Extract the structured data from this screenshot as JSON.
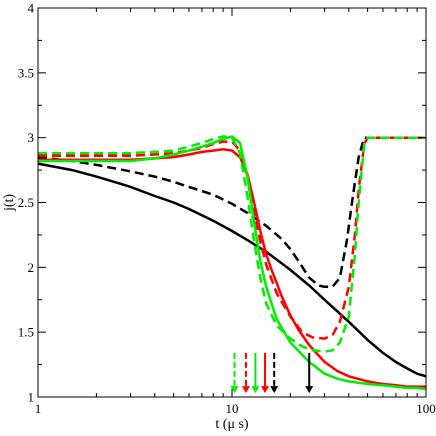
{
  "chart_data": {
    "type": "line",
    "title": "",
    "xlabel": "t (μ s)",
    "ylabel": "j(t)",
    "xscale": "log",
    "xlim": [
      1,
      100
    ],
    "ylim": [
      1,
      4
    ],
    "x_ticks": [
      1,
      10,
      100
    ],
    "x_tick_labels": [
      "1",
      "10",
      "100"
    ],
    "y_ticks": [
      1,
      1.5,
      2,
      2.5,
      3,
      3.5,
      4
    ],
    "y_tick_labels": [
      "1",
      "1.5",
      "2",
      "2.5",
      "3",
      "3.5",
      "4"
    ],
    "grid": false,
    "legend": "none",
    "series": [
      {
        "color": "#000000",
        "style": "solid",
        "x": [
          1,
          1.5,
          2,
          3,
          4,
          5,
          6,
          8,
          10,
          12,
          15,
          17,
          20,
          25,
          30,
          40,
          50,
          60,
          70,
          80,
          90,
          100
        ],
        "y": [
          2.8,
          2.75,
          2.7,
          2.62,
          2.55,
          2.5,
          2.45,
          2.36,
          2.28,
          2.21,
          2.12,
          2.06,
          1.98,
          1.86,
          1.75,
          1.58,
          1.44,
          1.34,
          1.27,
          1.22,
          1.18,
          1.16
        ]
      },
      {
        "color": "#000000",
        "style": "dashed",
        "x": [
          1,
          1.5,
          2,
          3,
          4,
          5,
          6,
          8,
          10,
          12,
          15,
          18,
          20,
          22,
          25,
          28,
          30,
          33,
          36,
          39,
          42,
          45,
          48,
          50,
          60,
          70,
          80,
          90,
          100
        ],
        "y": [
          2.85,
          2.82,
          2.79,
          2.74,
          2.7,
          2.66,
          2.62,
          2.56,
          2.49,
          2.42,
          2.32,
          2.22,
          2.14,
          2.05,
          1.92,
          1.86,
          1.85,
          1.85,
          1.92,
          2.2,
          2.55,
          2.85,
          3.0,
          3.0,
          3.0,
          3.0,
          3.0,
          3.0,
          3.0
        ]
      },
      {
        "color": "#ff0000",
        "style": "solid",
        "x": [
          1,
          2,
          3,
          4,
          5,
          6,
          7,
          8,
          9,
          10,
          11,
          12,
          13,
          14,
          15,
          16,
          17,
          18,
          20,
          22,
          25,
          30,
          35,
          40,
          50,
          60,
          70,
          80,
          90,
          100
        ],
        "y": [
          2.83,
          2.83,
          2.83,
          2.84,
          2.85,
          2.87,
          2.89,
          2.9,
          2.91,
          2.9,
          2.85,
          2.72,
          2.5,
          2.28,
          2.1,
          1.98,
          1.88,
          1.78,
          1.63,
          1.52,
          1.4,
          1.27,
          1.2,
          1.16,
          1.12,
          1.1,
          1.09,
          1.08,
          1.08,
          1.08
        ]
      },
      {
        "color": "#ff0000",
        "style": "dashed",
        "x": [
          1,
          2,
          3,
          4,
          5,
          6,
          7,
          8,
          9,
          10,
          11,
          12,
          13,
          14,
          15,
          17,
          20,
          23,
          26,
          30,
          33,
          36,
          40,
          43,
          45,
          48,
          50,
          60,
          70,
          80,
          90,
          100
        ],
        "y": [
          2.86,
          2.86,
          2.86,
          2.87,
          2.88,
          2.9,
          2.92,
          2.95,
          2.97,
          2.97,
          2.9,
          2.7,
          2.42,
          2.2,
          2.02,
          1.8,
          1.62,
          1.5,
          1.46,
          1.45,
          1.48,
          1.58,
          1.85,
          2.25,
          2.6,
          2.95,
          3.0,
          3.0,
          3.0,
          3.0,
          3.0,
          3.0
        ]
      },
      {
        "color": "#00ee00",
        "style": "solid",
        "x": [
          1,
          2,
          3,
          4,
          5,
          6,
          7,
          8,
          9,
          10,
          11,
          12,
          13,
          14,
          15,
          17,
          20,
          25,
          30,
          35,
          40,
          50,
          60,
          70,
          80,
          90,
          100
        ],
        "y": [
          2.82,
          2.82,
          2.82,
          2.84,
          2.87,
          2.9,
          2.93,
          2.96,
          2.99,
          3.01,
          2.96,
          2.7,
          2.35,
          2.05,
          1.85,
          1.6,
          1.42,
          1.27,
          1.18,
          1.14,
          1.12,
          1.1,
          1.09,
          1.08,
          1.07,
          1.07,
          1.06
        ]
      },
      {
        "color": "#00ee00",
        "style": "dashed",
        "x": [
          1,
          2,
          3,
          4,
          5,
          6,
          7,
          8,
          9,
          10,
          11,
          12,
          13,
          14,
          15,
          17,
          20,
          23,
          26,
          30,
          33,
          36,
          40,
          43,
          45,
          48,
          50,
          60,
          70,
          80,
          90,
          100
        ],
        "y": [
          2.88,
          2.88,
          2.88,
          2.89,
          2.9,
          2.93,
          2.96,
          2.99,
          3.01,
          3.0,
          2.88,
          2.55,
          2.2,
          1.92,
          1.72,
          1.55,
          1.45,
          1.39,
          1.36,
          1.35,
          1.36,
          1.42,
          1.62,
          2.1,
          2.5,
          2.95,
          3.0,
          3.0,
          3.0,
          3.0,
          3.0,
          3.0
        ]
      }
    ],
    "arrows": [
      {
        "x": 10.3,
        "color": "#00ee00",
        "style": "dashed"
      },
      {
        "x": 11.8,
        "color": "#ff0000",
        "style": "dashed"
      },
      {
        "x": 13.2,
        "color": "#00ee00",
        "style": "solid"
      },
      {
        "x": 14.8,
        "color": "#ff0000",
        "style": "solid"
      },
      {
        "x": 16.5,
        "color": "#000000",
        "style": "dashed"
      },
      {
        "x": 25.0,
        "color": "#000000",
        "style": "solid"
      }
    ]
  }
}
